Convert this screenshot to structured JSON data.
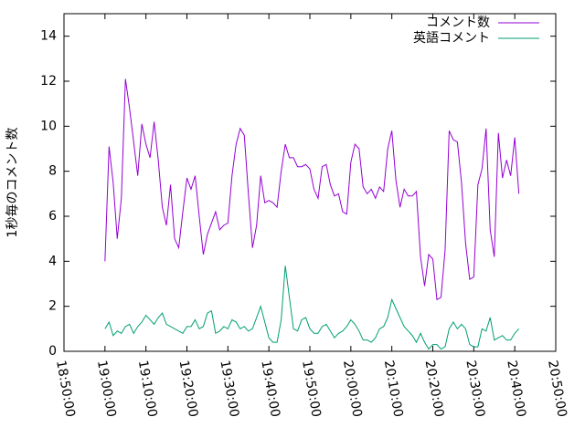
{
  "chart_data": {
    "type": "line",
    "ylabel": "1秒毎のコメント数",
    "x": [
      "19:00:00",
      "19:01:00",
      "19:02:00",
      "19:03:00",
      "19:04:00",
      "19:05:00",
      "19:06:00",
      "19:07:00",
      "19:08:00",
      "19:09:00",
      "19:10:00",
      "19:11:00",
      "19:12:00",
      "19:13:00",
      "19:14:00",
      "19:15:00",
      "19:16:00",
      "19:17:00",
      "19:18:00",
      "19:19:00",
      "19:20:00",
      "19:21:00",
      "19:22:00",
      "19:23:00",
      "19:24:00",
      "19:25:00",
      "19:26:00",
      "19:27:00",
      "19:28:00",
      "19:29:00",
      "19:30:00",
      "19:31:00",
      "19:32:00",
      "19:33:00",
      "19:34:00",
      "19:35:00",
      "19:36:00",
      "19:37:00",
      "19:38:00",
      "19:39:00",
      "19:40:00",
      "19:41:00",
      "19:42:00",
      "19:43:00",
      "19:44:00",
      "19:45:00",
      "19:46:00",
      "19:47:00",
      "19:48:00",
      "19:49:00",
      "19:50:00",
      "19:51:00",
      "19:52:00",
      "19:53:00",
      "19:54:00",
      "19:55:00",
      "19:56:00",
      "19:57:00",
      "19:58:00",
      "19:59:00",
      "20:00:00",
      "20:01:00",
      "20:02:00",
      "20:03:00",
      "20:04:00",
      "20:05:00",
      "20:06:00",
      "20:07:00",
      "20:08:00",
      "20:09:00",
      "20:10:00",
      "20:11:00",
      "20:12:00",
      "20:13:00",
      "20:14:00",
      "20:15:00",
      "20:16:00",
      "20:17:00",
      "20:18:00",
      "20:19:00",
      "20:20:00",
      "20:21:00",
      "20:22:00",
      "20:23:00",
      "20:24:00",
      "20:25:00",
      "20:26:00",
      "20:27:00",
      "20:28:00",
      "20:29:00",
      "20:30:00",
      "20:31:00",
      "20:32:00",
      "20:33:00",
      "20:34:00",
      "20:35:00",
      "20:36:00",
      "20:37:00",
      "20:38:00",
      "20:39:00",
      "20:40:00",
      "20:41:00"
    ],
    "series": [
      {
        "name": "コメント数",
        "color": "#9400d3",
        "values": [
          4.0,
          9.1,
          7.5,
          5.0,
          6.8,
          12.1,
          10.8,
          9.3,
          7.8,
          10.1,
          9.2,
          8.6,
          10.2,
          8.5,
          6.4,
          5.6,
          7.4,
          5.0,
          4.6,
          6.2,
          7.7,
          7.2,
          7.8,
          6.0,
          4.3,
          5.2,
          5.7,
          6.2,
          5.4,
          5.6,
          5.7,
          7.8,
          9.2,
          9.9,
          9.6,
          7.0,
          4.6,
          5.6,
          7.8,
          6.6,
          6.7,
          6.6,
          6.4,
          8.0,
          9.2,
          8.6,
          8.6,
          8.2,
          8.2,
          8.3,
          8.1,
          7.2,
          6.8,
          8.2,
          8.3,
          7.4,
          6.9,
          7.0,
          6.2,
          6.1,
          8.4,
          9.2,
          9.0,
          7.3,
          7.0,
          7.2,
          6.8,
          7.3,
          7.1,
          9.0,
          9.8,
          7.6,
          6.4,
          7.2,
          6.9,
          6.9,
          7.1,
          4.2,
          2.9,
          4.3,
          4.1,
          2.3,
          2.4,
          4.5,
          9.8,
          9.4,
          9.3,
          7.5,
          4.8,
          3.2,
          3.3,
          7.4,
          8.1,
          9.9,
          5.4,
          4.2,
          9.7,
          7.7,
          8.5,
          7.8,
          9.5,
          7.0
        ]
      },
      {
        "name": "英語コメント",
        "color": "#009e73",
        "values": [
          1.0,
          1.3,
          0.7,
          0.9,
          0.8,
          1.1,
          1.2,
          0.8,
          1.1,
          1.3,
          1.6,
          1.4,
          1.2,
          1.5,
          1.7,
          1.2,
          1.1,
          1.0,
          0.9,
          0.8,
          1.1,
          1.1,
          1.4,
          1.0,
          1.1,
          1.7,
          1.8,
          0.8,
          0.9,
          1.1,
          1.0,
          1.4,
          1.3,
          1.0,
          1.1,
          0.9,
          1.0,
          1.5,
          2.0,
          1.3,
          0.6,
          0.4,
          0.4,
          1.4,
          3.8,
          2.4,
          1.0,
          0.9,
          1.4,
          1.5,
          1.0,
          0.8,
          0.8,
          1.1,
          1.2,
          0.9,
          0.6,
          0.8,
          0.9,
          1.1,
          1.4,
          1.2,
          0.9,
          0.5,
          0.5,
          0.4,
          0.6,
          1.0,
          1.1,
          1.5,
          2.3,
          1.9,
          1.5,
          1.1,
          0.9,
          0.7,
          0.4,
          0.8,
          0.4,
          0.1,
          0.3,
          0.3,
          0.1,
          0.2,
          1.0,
          1.3,
          1.0,
          1.2,
          1.0,
          0.3,
          0.2,
          0.2,
          1.0,
          0.9,
          1.5,
          0.5,
          0.6,
          0.7,
          0.5,
          0.5,
          0.8,
          1.0
        ]
      }
    ],
    "xlim": [
      "18:50:00",
      "20:50:00"
    ],
    "xticks": [
      "18:50:00",
      "19:00:00",
      "19:10:00",
      "19:20:00",
      "19:30:00",
      "19:40:00",
      "19:50:00",
      "20:00:00",
      "20:10:00",
      "20:20:00",
      "20:30:00",
      "20:40:00",
      "20:50:00"
    ],
    "ylim": [
      0,
      15
    ],
    "yticks": [
      0,
      2,
      4,
      6,
      8,
      10,
      12,
      14
    ],
    "legend": "top-right"
  }
}
